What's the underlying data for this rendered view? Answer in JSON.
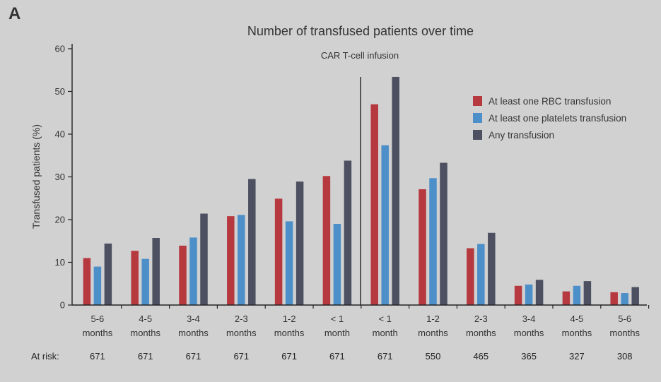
{
  "panel_label": "A",
  "at_risk_label": "At risk:",
  "colors": {
    "rbc": "#b6393f",
    "platelets": "#4d8fc8",
    "any": "#4c5060",
    "background": "#d1d1d1"
  },
  "chart_data": {
    "type": "bar",
    "title": "Number of transfused patients over time",
    "xlabel": "",
    "ylabel": "Transfused patients (%)",
    "ylim": [
      0,
      60
    ],
    "yticks": [
      0,
      10,
      20,
      30,
      40,
      50,
      60
    ],
    "annotation": "CAR T-cell infusion",
    "categories": [
      [
        "5-6",
        "months"
      ],
      [
        "4-5",
        "months"
      ],
      [
        "3-4",
        "months"
      ],
      [
        "2-3",
        "months"
      ],
      [
        "1-2",
        "months"
      ],
      [
        "< 1",
        "month"
      ],
      [
        "< 1",
        "month"
      ],
      [
        "1-2",
        "months"
      ],
      [
        "2-3",
        "months"
      ],
      [
        "3-4",
        "months"
      ],
      [
        "4-5",
        "months"
      ],
      [
        "5-6",
        "months"
      ]
    ],
    "at_risk": [
      "671",
      "671",
      "671",
      "671",
      "671",
      "671",
      "671",
      "550",
      "465",
      "365",
      "327",
      "308"
    ],
    "series": [
      {
        "name": "At least one RBC transfusion",
        "color_key": "rbc",
        "values": [
          11,
          12.7,
          13.9,
          20.8,
          24.9,
          30.2,
          47,
          27.1,
          13.3,
          4.5,
          3.2,
          3.0
        ]
      },
      {
        "name": "At least one platelets transfusion",
        "color_key": "platelets",
        "values": [
          9.0,
          10.8,
          15.8,
          21.1,
          19.6,
          19.0,
          37.4,
          29.7,
          14.3,
          4.8,
          4.5,
          2.8
        ]
      },
      {
        "name": "Any transfusion",
        "color_key": "any",
        "values": [
          14.4,
          15.7,
          21.4,
          29.5,
          28.9,
          33.8,
          53.4,
          33.3,
          16.9,
          5.9,
          5.6,
          4.2
        ]
      }
    ],
    "legend_position": "top-right",
    "infusion_marker_after_index": 5
  }
}
